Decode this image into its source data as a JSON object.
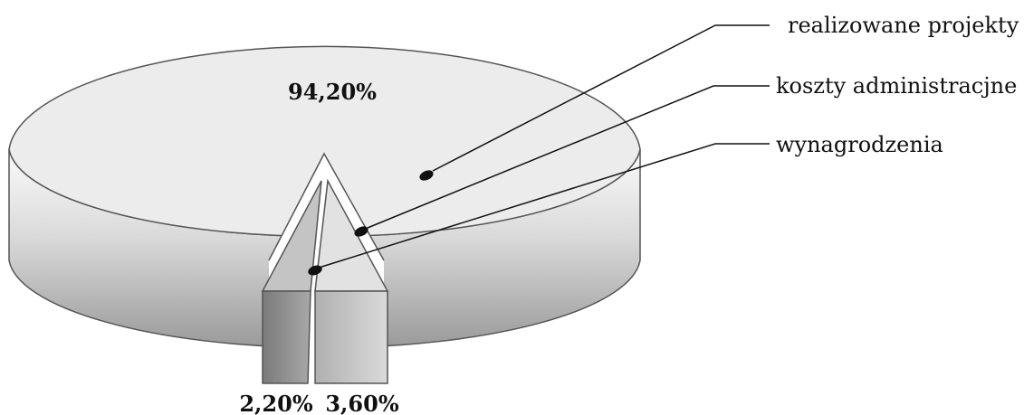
{
  "chart_data": {
    "type": "pie",
    "style": "3d-exploded",
    "categories": [
      "realizowane projekty",
      "koszty administracjne",
      "wynagrodzenia"
    ],
    "values": [
      94.2,
      3.6,
      2.2
    ],
    "data_labels": [
      "94,20%",
      "3,60%",
      "2,20%"
    ],
    "legend_placement": "right, with leader lines",
    "colors": {
      "realizowane projekty": "#ececec",
      "koszty administracjne": "#e2e2e2",
      "wynagrodzenia": "#c4c4c4",
      "outline": "#555555"
    }
  }
}
